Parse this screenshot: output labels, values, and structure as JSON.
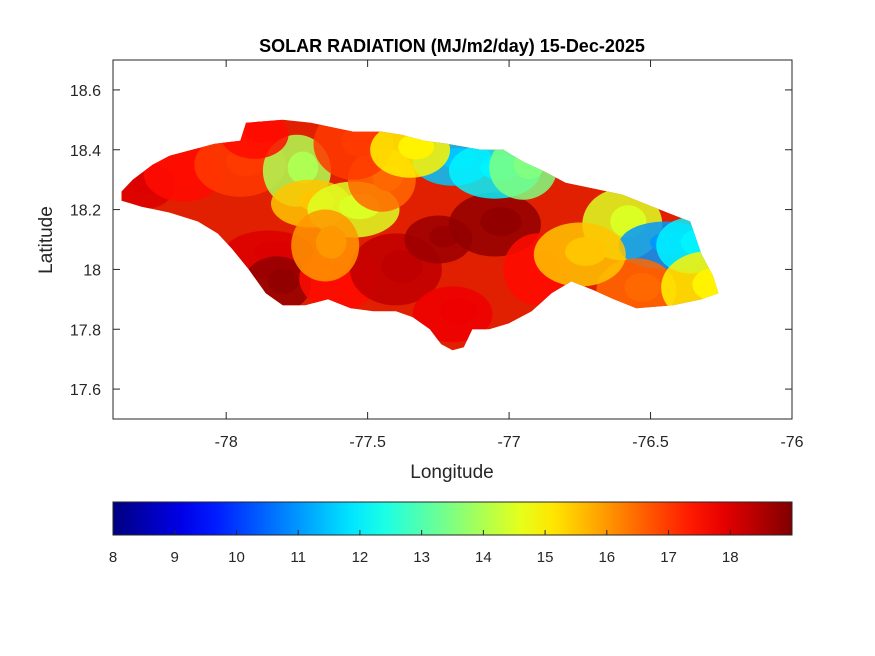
{
  "chart_data": {
    "type": "heatmap",
    "title": "SOLAR RADIATION (MJ/m2/day) 15-Dec-2025",
    "xlabel": "Longitude",
    "ylabel": "Latitude",
    "xlim": [
      -78.4,
      -76
    ],
    "ylim": [
      17.5,
      18.7
    ],
    "x_ticks": [
      "-78",
      "-77.5",
      "-77",
      "-76.5",
      "-76"
    ],
    "x_tick_values": [
      -78,
      -77.5,
      -77,
      -76.5,
      -76
    ],
    "y_ticks": [
      "17.6",
      "17.8",
      "18",
      "18.2",
      "18.4",
      "18.6"
    ],
    "y_tick_values": [
      17.6,
      17.8,
      18.0,
      18.2,
      18.4,
      18.6
    ],
    "colormap": "jet",
    "color_range": [
      8,
      19
    ],
    "colorbar_ticks": [
      "8",
      "9",
      "10",
      "11",
      "12",
      "13",
      "14",
      "15",
      "16",
      "17",
      "18"
    ],
    "colorbar_tick_values": [
      8,
      9,
      10,
      11,
      12,
      13,
      14,
      15,
      16,
      17,
      18
    ],
    "colorbar_location": "south",
    "grid": false,
    "region_outline": [
      [
        -78.37,
        18.26
      ],
      [
        -78.33,
        18.3
      ],
      [
        -78.26,
        18.35
      ],
      [
        -78.2,
        18.38
      ],
      [
        -78.12,
        18.4
      ],
      [
        -78.04,
        18.42
      ],
      [
        -77.95,
        18.43
      ],
      [
        -77.93,
        18.49
      ],
      [
        -77.8,
        18.5
      ],
      [
        -77.7,
        18.49
      ],
      [
        -77.55,
        18.46
      ],
      [
        -77.45,
        18.46
      ],
      [
        -77.38,
        18.45
      ],
      [
        -77.3,
        18.43
      ],
      [
        -77.22,
        18.42
      ],
      [
        -77.1,
        18.4
      ],
      [
        -77.02,
        18.4
      ],
      [
        -76.95,
        18.36
      ],
      [
        -76.88,
        18.33
      ],
      [
        -76.8,
        18.29
      ],
      [
        -76.7,
        18.27
      ],
      [
        -76.6,
        18.25
      ],
      [
        -76.52,
        18.22
      ],
      [
        -76.44,
        18.19
      ],
      [
        -76.36,
        18.16
      ],
      [
        -76.32,
        18.05
      ],
      [
        -76.28,
        17.98
      ],
      [
        -76.26,
        17.92
      ],
      [
        -76.32,
        17.9
      ],
      [
        -76.42,
        17.88
      ],
      [
        -76.55,
        17.87
      ],
      [
        -76.63,
        17.9
      ],
      [
        -76.7,
        17.93
      ],
      [
        -76.78,
        17.96
      ],
      [
        -76.85,
        17.92
      ],
      [
        -76.92,
        17.86
      ],
      [
        -77.0,
        17.82
      ],
      [
        -77.07,
        17.8
      ],
      [
        -77.13,
        17.8
      ],
      [
        -77.16,
        17.74
      ],
      [
        -77.2,
        17.73
      ],
      [
        -77.24,
        17.75
      ],
      [
        -77.28,
        17.8
      ],
      [
        -77.34,
        17.84
      ],
      [
        -77.4,
        17.86
      ],
      [
        -77.48,
        17.86
      ],
      [
        -77.56,
        17.87
      ],
      [
        -77.64,
        17.9
      ],
      [
        -77.72,
        17.88
      ],
      [
        -77.8,
        17.88
      ],
      [
        -77.86,
        17.92
      ],
      [
        -77.92,
        18.0
      ],
      [
        -77.98,
        18.07
      ],
      [
        -78.03,
        18.12
      ],
      [
        -78.1,
        18.16
      ],
      [
        -78.2,
        18.19
      ],
      [
        -78.3,
        18.21
      ],
      [
        -78.37,
        18.23
      ]
    ],
    "field_centers": [
      {
        "lon": -78.3,
        "lat": 18.28,
        "value": 18.0
      },
      {
        "lon": -78.15,
        "lat": 18.32,
        "value": 17.5
      },
      {
        "lon": -77.95,
        "lat": 18.35,
        "value": 17.0
      },
      {
        "lon": -77.75,
        "lat": 18.33,
        "value": 14.0
      },
      {
        "lon": -77.7,
        "lat": 18.22,
        "value": 15.5
      },
      {
        "lon": -77.55,
        "lat": 18.2,
        "value": 14.5
      },
      {
        "lon": -77.45,
        "lat": 18.3,
        "value": 16.5
      },
      {
        "lon": -77.55,
        "lat": 18.42,
        "value": 17.0
      },
      {
        "lon": -77.85,
        "lat": 18.05,
        "value": 18.0
      },
      {
        "lon": -77.82,
        "lat": 17.95,
        "value": 18.8
      },
      {
        "lon": -77.6,
        "lat": 17.97,
        "value": 17.5
      },
      {
        "lon": -77.4,
        "lat": 18.0,
        "value": 18.3
      },
      {
        "lon": -77.25,
        "lat": 18.1,
        "value": 18.7
      },
      {
        "lon": -77.2,
        "lat": 17.85,
        "value": 17.8
      },
      {
        "lon": -77.05,
        "lat": 18.15,
        "value": 18.8
      },
      {
        "lon": -76.9,
        "lat": 18.0,
        "value": 17.5
      },
      {
        "lon": -77.2,
        "lat": 18.36,
        "value": 11.5
      },
      {
        "lon": -77.05,
        "lat": 18.33,
        "value": 12.0
      },
      {
        "lon": -76.95,
        "lat": 18.34,
        "value": 13.5
      },
      {
        "lon": -76.6,
        "lat": 18.15,
        "value": 14.5
      },
      {
        "lon": -76.45,
        "lat": 18.08,
        "value": 11.0
      },
      {
        "lon": -76.36,
        "lat": 18.08,
        "value": 12.0
      },
      {
        "lon": -76.55,
        "lat": 17.93,
        "value": 16.5
      },
      {
        "lon": -76.3,
        "lat": 17.94,
        "value": 15.0
      },
      {
        "lon": -77.9,
        "lat": 18.45,
        "value": 17.5
      },
      {
        "lon": -77.35,
        "lat": 18.4,
        "value": 15.0
      },
      {
        "lon": -76.75,
        "lat": 18.05,
        "value": 15.5
      },
      {
        "lon": -77.65,
        "lat": 18.08,
        "value": 16.0
      }
    ]
  }
}
